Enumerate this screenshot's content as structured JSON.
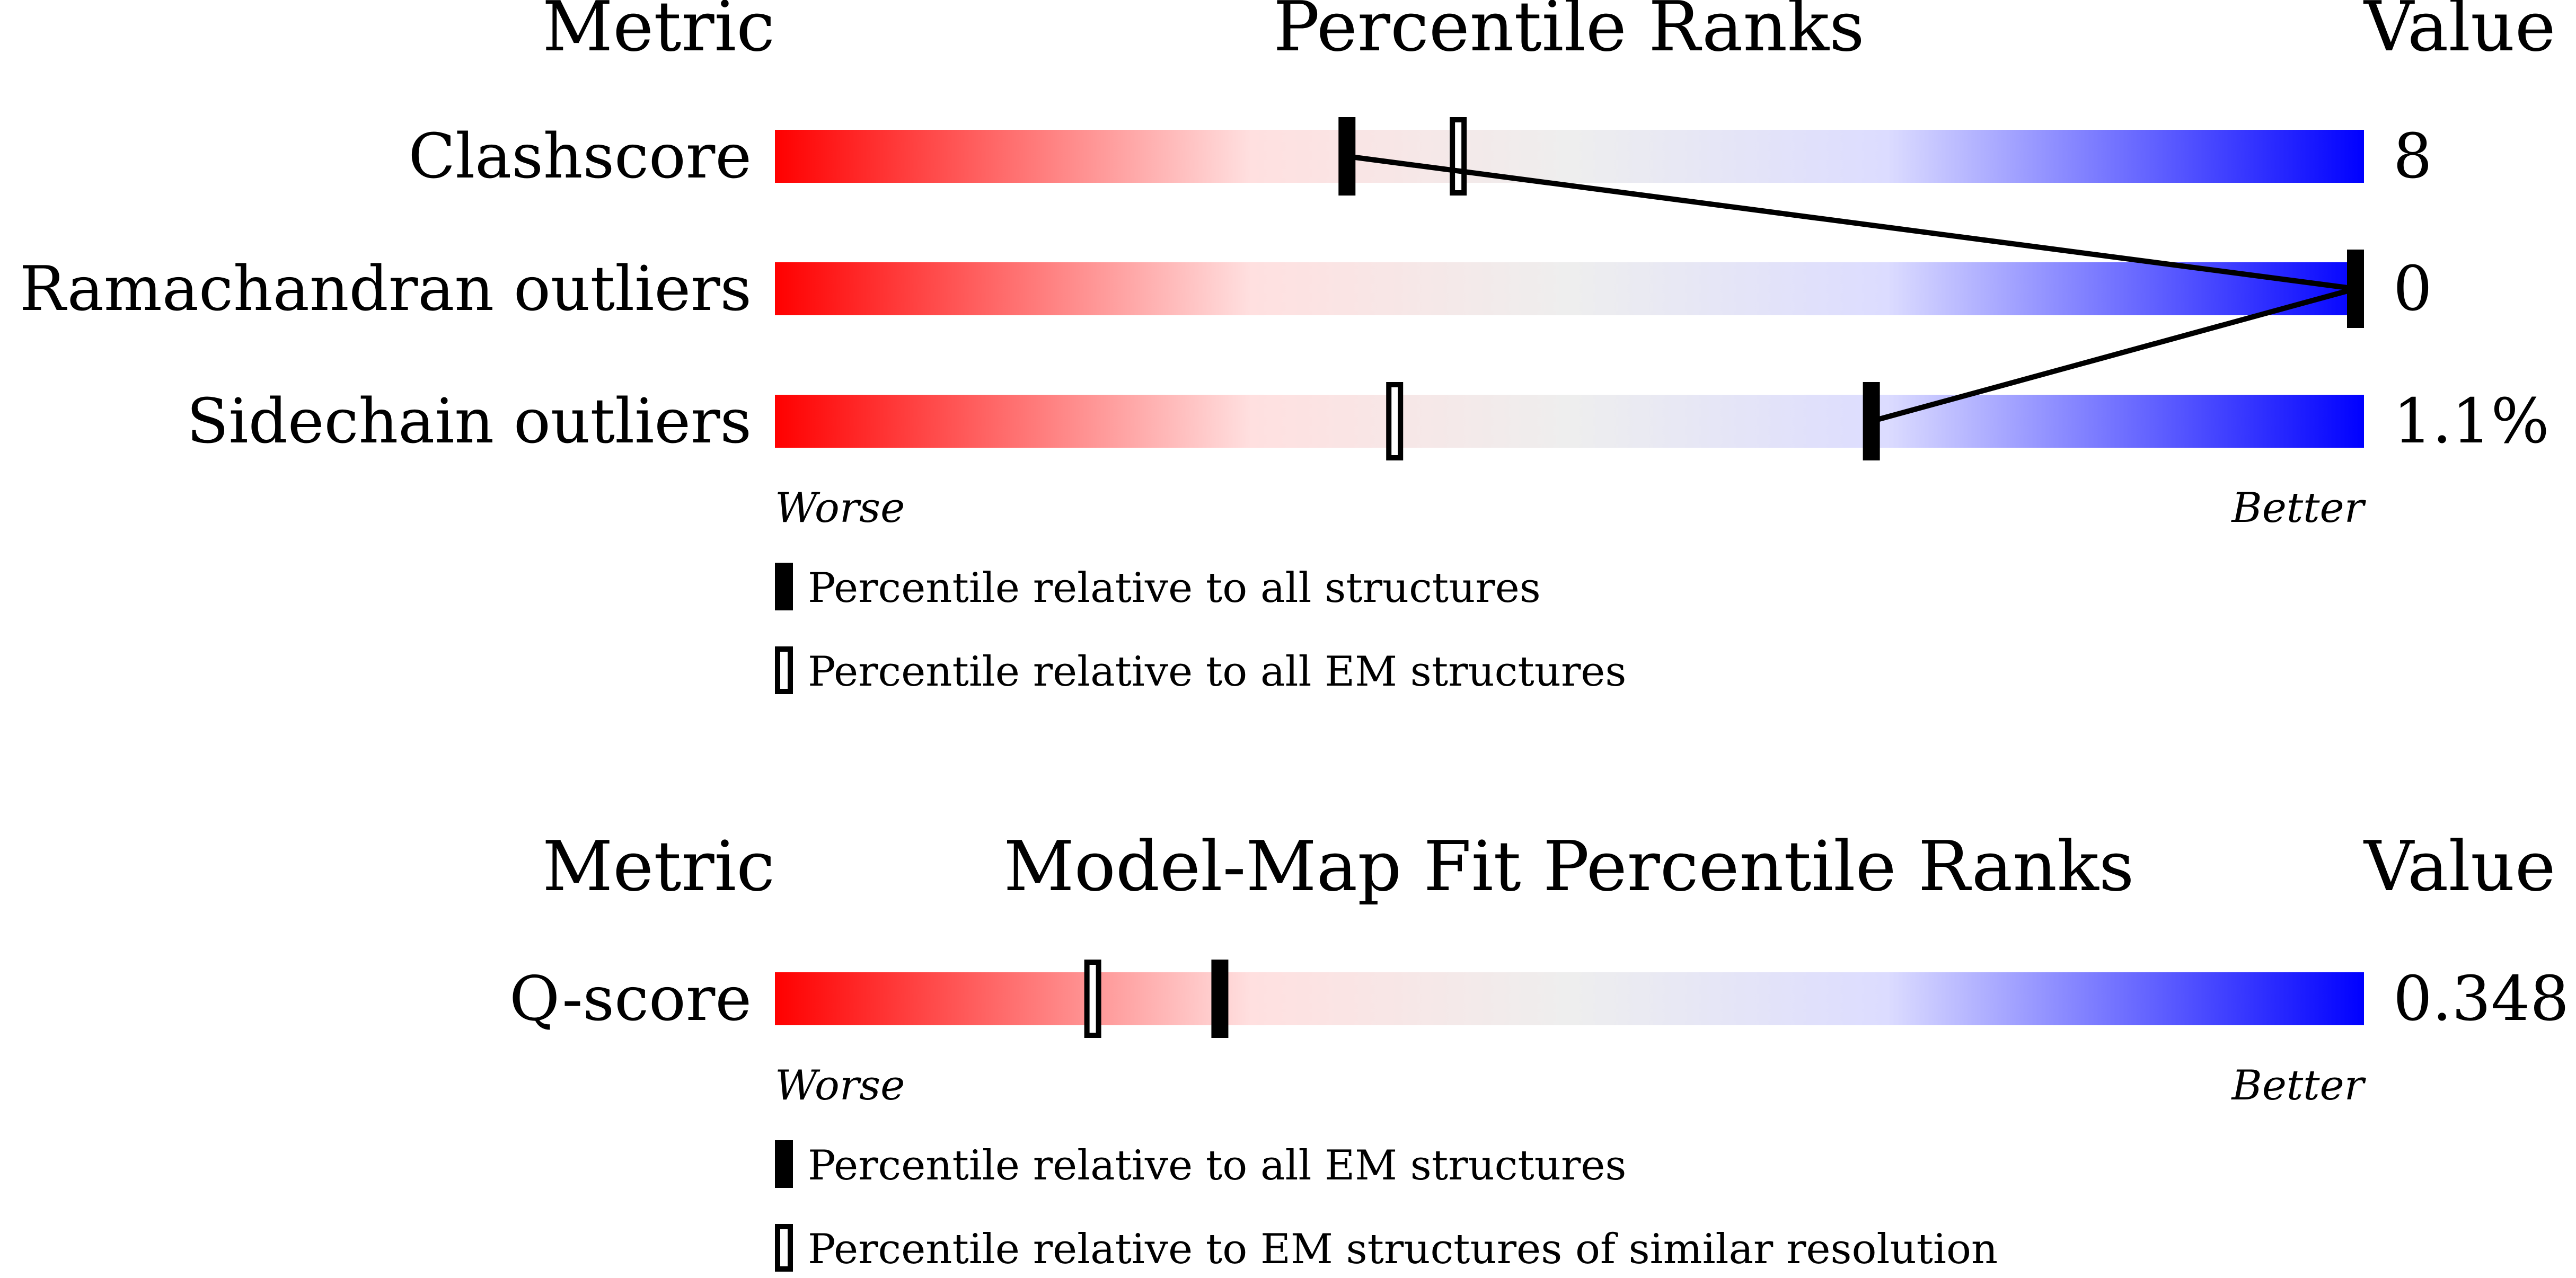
{
  "colors": {
    "worse": "#ff0000",
    "mid_red": "#ffe0e0",
    "neutral": "#eeeeee",
    "mid_blue": "#dcdcff",
    "better": "#0000ff",
    "marker": "#000000"
  },
  "chart_data": [
    {
      "type": "percentile-bar",
      "headers": {
        "metric": "Metric",
        "title": "Percentile Ranks",
        "value": "Value"
      },
      "rows": [
        {
          "label": "Clashscore",
          "value": "8",
          "percentile_all": 36,
          "percentile_em": 43
        },
        {
          "label": "Ramachandran outliers",
          "value": "0",
          "percentile_all": 100,
          "percentile_em": 100
        },
        {
          "label": "Sidechain outliers",
          "value": "1.1%",
          "percentile_all": 69,
          "percentile_em": 39
        }
      ],
      "axis": {
        "min": 0,
        "max": 100,
        "left_label": "Worse",
        "right_label": "Better"
      },
      "legend": [
        {
          "marker": "filled",
          "label": "Percentile relative to all structures"
        },
        {
          "marker": "open",
          "label": "Percentile relative to all EM structures"
        }
      ]
    },
    {
      "type": "percentile-bar",
      "headers": {
        "metric": "Metric",
        "title": "Model-Map Fit Percentile Ranks",
        "value": "Value"
      },
      "rows": [
        {
          "label": "Q-score",
          "value": "0.348",
          "percentile_all": 28,
          "percentile_em": 20
        }
      ],
      "axis": {
        "min": 0,
        "max": 100,
        "left_label": "Worse",
        "right_label": "Better"
      },
      "legend": [
        {
          "marker": "filled",
          "label": "Percentile relative to all EM structures"
        },
        {
          "marker": "open",
          "label": "Percentile relative to EM structures of similar resolution"
        }
      ]
    }
  ]
}
